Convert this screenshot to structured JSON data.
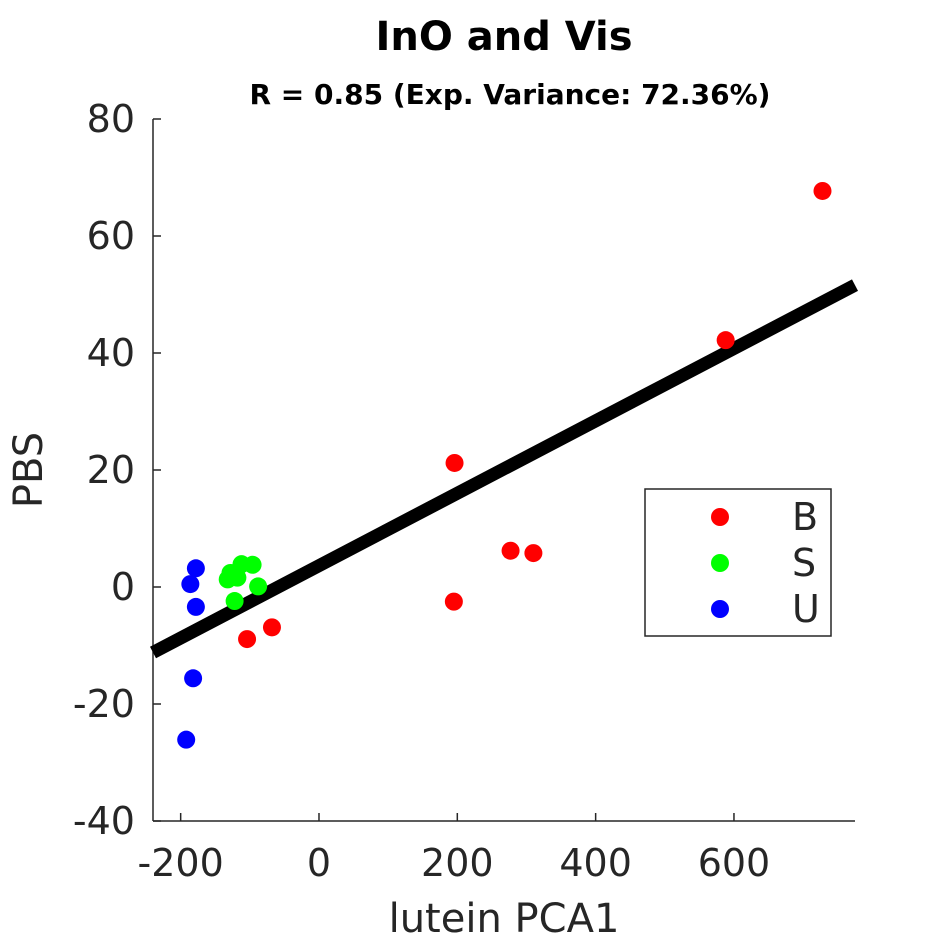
{
  "chart_data": {
    "type": "scatter",
    "title": "InO and Vis",
    "subtitle": "R = 0.85 (Exp. Variance: 72.36%)",
    "xlabel": "lutein PCA1",
    "ylabel": "PBS",
    "xlim": [
      -240,
      775
    ],
    "ylim": [
      -40,
      80
    ],
    "x_ticks": [
      -200,
      0,
      200,
      400,
      600
    ],
    "x_tick_labels": [
      "-200",
      "0",
      "200",
      "400",
      "600"
    ],
    "y_ticks": [
      -40,
      -20,
      0,
      20,
      40,
      60,
      80
    ],
    "y_tick_labels": [
      "-40",
      "-20",
      "0",
      "20",
      "40",
      "60",
      "80"
    ],
    "grid": false,
    "legend_position": "right",
    "series": [
      {
        "name": "B",
        "color": "#ff0000",
        "points": [
          {
            "x": 728,
            "y": 67.7
          },
          {
            "x": 588,
            "y": 42.2
          },
          {
            "x": 196,
            "y": 21.2
          },
          {
            "x": 277,
            "y": 6.2
          },
          {
            "x": 310,
            "y": 5.8
          },
          {
            "x": 195,
            "y": -2.5
          },
          {
            "x": -68,
            "y": -6.9
          },
          {
            "x": -104,
            "y": -8.9
          }
        ]
      },
      {
        "name": "S",
        "color": "#00ff00",
        "points": [
          {
            "x": -132,
            "y": 1.3
          },
          {
            "x": -125,
            "y": 2.1
          },
          {
            "x": -118,
            "y": 1.6
          },
          {
            "x": -112,
            "y": 3.9
          },
          {
            "x": -96,
            "y": 3.8
          },
          {
            "x": -88,
            "y": 0.1
          },
          {
            "x": -122,
            "y": -2.4
          },
          {
            "x": -128,
            "y": 2.4
          }
        ]
      },
      {
        "name": "U",
        "color": "#0000ff",
        "points": [
          {
            "x": -178,
            "y": 3.2
          },
          {
            "x": -186,
            "y": 0.5
          },
          {
            "x": -178,
            "y": -3.4
          },
          {
            "x": -182,
            "y": -15.6
          },
          {
            "x": -192,
            "y": -26.1
          }
        ]
      }
    ],
    "fit_line": {
      "color": "#000000",
      "x": [
        -240,
        775
      ],
      "y": [
        -11.2,
        51.6
      ]
    }
  }
}
